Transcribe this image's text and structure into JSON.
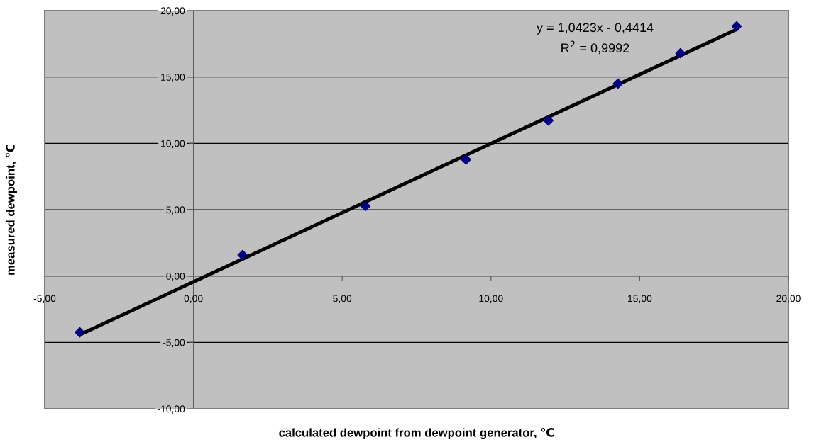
{
  "chart_data": {
    "type": "scatter",
    "xlabel": "calculated dewpoint from dewpoint generator, ℃",
    "ylabel": "measured dewpoint, ℃",
    "annotations": [
      "y = 1,0423x - 0,4414",
      "R$^{2}$ = 0,9992"
    ],
    "series": [
      {
        "color": "#000080",
        "marker": "diamond",
        "x": [
          -3.82,
          1.65,
          5.78,
          9.16,
          11.93,
          14.27,
          16.37,
          18.26
        ],
        "values": [
          -4.24,
          1.58,
          5.27,
          8.78,
          11.72,
          14.5,
          16.79,
          18.82
        ]
      },
      {
        "type": "line",
        "color": "#000000",
        "marker": "none",
        "line_style": "solid",
        "x": [
          -3.82,
          18.26
        ],
        "values": [
          -4.42,
          18.59
        ]
      }
    ],
    "xlim": [
      -5,
      20
    ],
    "ylim": [
      -10,
      20
    ],
    "xticks": [
      {
        "value": -5,
        "label": "-5,00"
      },
      {
        "value": 0,
        "label": "0,00"
      },
      {
        "value": 5,
        "label": "5,00"
      },
      {
        "value": 10,
        "label": "10,00"
      },
      {
        "value": 15,
        "label": "15,00"
      },
      {
        "value": 20,
        "label": "20,00"
      }
    ],
    "yticks": [
      {
        "value": -10,
        "label": "-10,00"
      },
      {
        "value": -5,
        "label": "-5,00"
      },
      {
        "value": 0,
        "label": "0,00"
      },
      {
        "value": 5,
        "label": "5,00"
      },
      {
        "value": 10,
        "label": "10,00"
      },
      {
        "value": 15,
        "label": "15,00"
      },
      {
        "value": 20,
        "label": "20,00"
      }
    ],
    "grid": "y"
  }
}
